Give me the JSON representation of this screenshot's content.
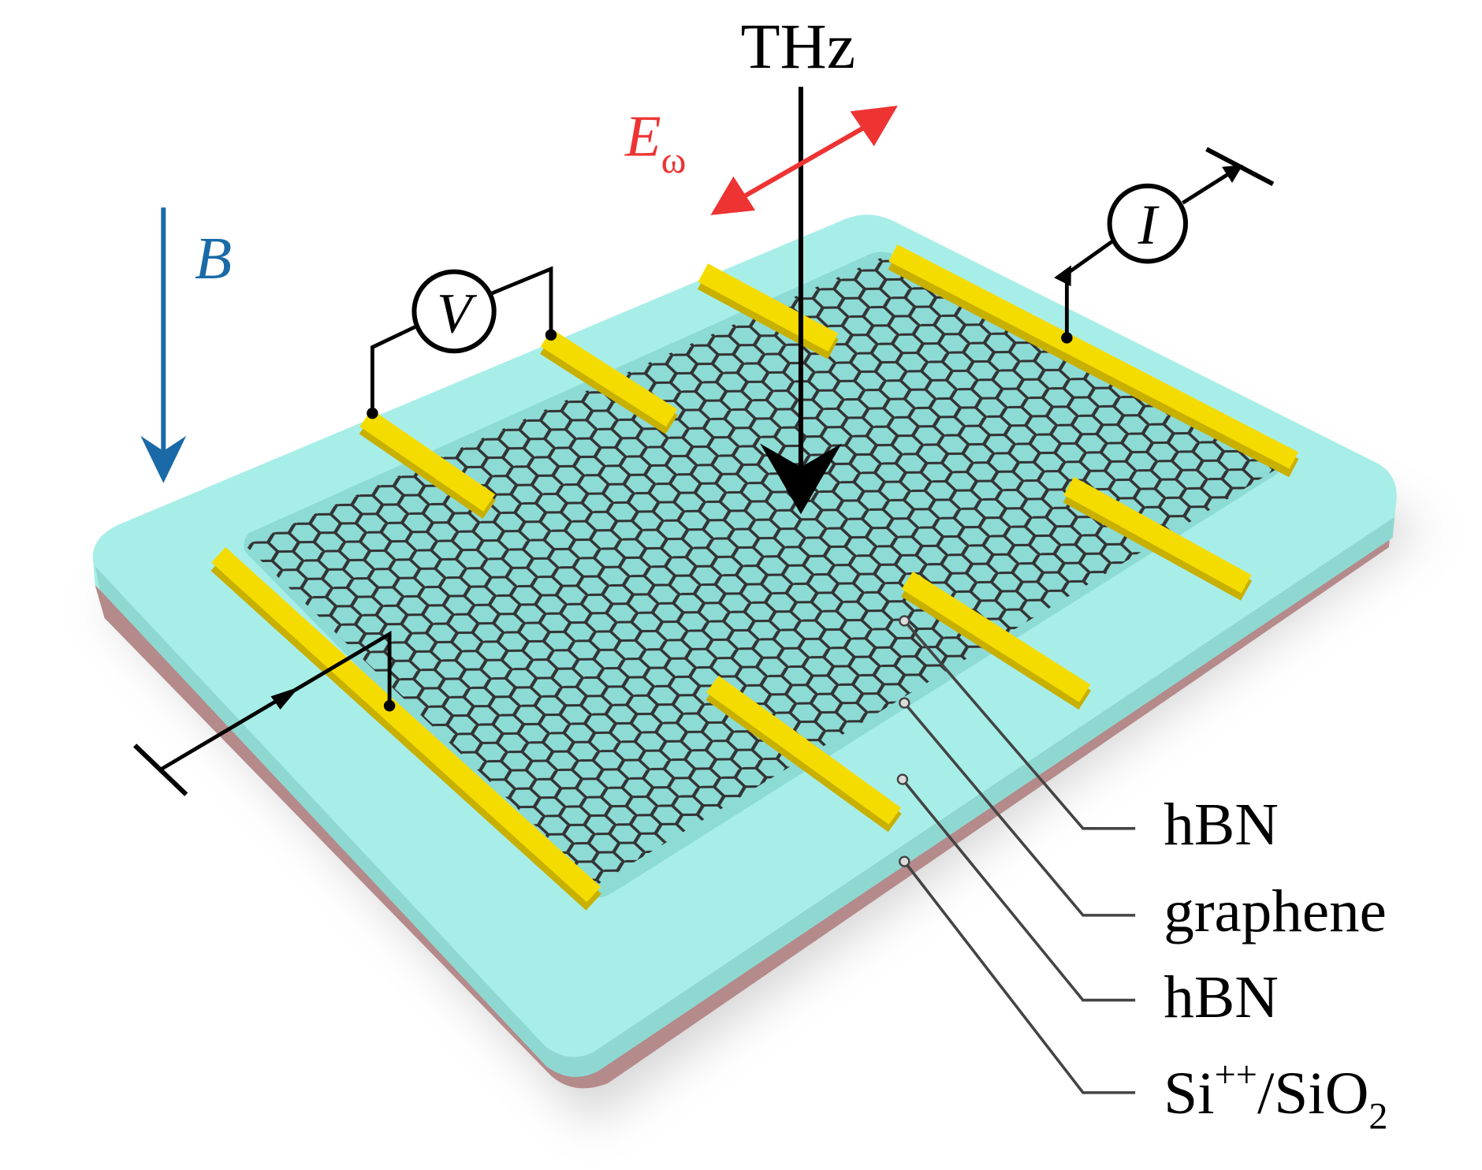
{
  "figure": {
    "beam_label": "THz",
    "field_label": "E",
    "field_subscript": "ω",
    "magnetic_label": "B",
    "voltmeter_label": "V",
    "ammeter_label": "I",
    "layers": [
      {
        "label": "hBN"
      },
      {
        "label": "graphene"
      },
      {
        "label": "hBN"
      },
      {
        "label": "Si",
        "sup": "++",
        "rest": "/SiO",
        "sub": "2"
      }
    ]
  },
  "colors": {
    "field_arrow": "#ee3333",
    "magnetic_arrow": "#1a6aa8",
    "hbn": "#a8eee8",
    "substrate": "#b58a8a",
    "electrode": "#f2d800",
    "graphene": "#333333"
  }
}
